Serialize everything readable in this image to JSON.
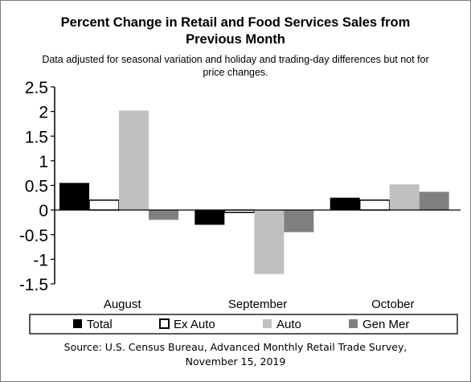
{
  "chart_data": {
    "type": "bar",
    "title": "Percent Change in Retail and Food Services Sales from Previous Month",
    "title_lines": [
      "Percent Change in Retail and Food Services Sales from",
      "Previous Month"
    ],
    "subtitle_lines": [
      "Data adjusted for seasonal variation and holiday and trading-day differences but not for",
      "price changes."
    ],
    "categories": [
      "August",
      "September",
      "October"
    ],
    "series": [
      {
        "name": "Total",
        "values": [
          0.55,
          -0.3,
          0.25
        ],
        "color": "#000000"
      },
      {
        "name": "Ex Auto",
        "values": [
          0.2,
          -0.05,
          0.2
        ],
        "color": "#ffffff"
      },
      {
        "name": "Auto",
        "values": [
          2.02,
          -1.3,
          0.52
        ],
        "color": "#c0c0c0"
      },
      {
        "name": "Gen Mer",
        "values": [
          -0.2,
          -0.45,
          0.37
        ],
        "color": "#808080"
      }
    ],
    "ylim": [
      -1.5,
      2.5
    ],
    "yticks": [
      "2.5",
      "2",
      "1.5",
      "1",
      "0.5",
      "0",
      "-0.5",
      "-1",
      "-1.5"
    ],
    "ytick_values": [
      2.5,
      2,
      1.5,
      1,
      0.5,
      0,
      -0.5,
      -1,
      -1.5
    ],
    "grid": false,
    "legend_position": "bottom",
    "source_lines": [
      "Source: U.S. Census Bureau, Advanced Monthly Retail Trade Survey,",
      "November 15, 2019"
    ]
  }
}
